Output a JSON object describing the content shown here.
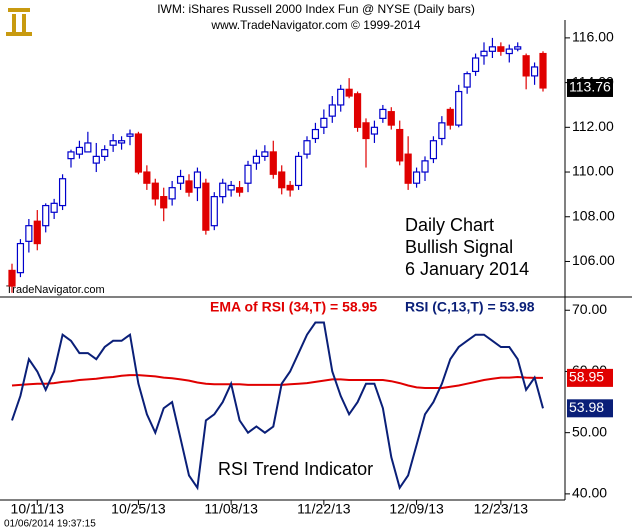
{
  "header": {
    "title": "IWM:  iShares Russell 2000 Index Fun @ NYSE  (Daily bars)",
    "subtitle": "www.TradeNavigator.com © 1999-2014"
  },
  "timestamp": "01/06/2014 19:37:15",
  "chart_data": [
    {
      "type": "candlestick",
      "watermark": "TradeNavigator.com",
      "annotation": [
        "Daily Chart",
        "Bullish Signal",
        "6 January 2014"
      ],
      "up_color": "#0000cc",
      "down_color": "#e00000",
      "ylim": [
        104.5,
        116.8
      ],
      "yticks": [
        {
          "value": 106,
          "label": "106.00"
        },
        {
          "value": 108,
          "label": "108.00"
        },
        {
          "value": 110,
          "label": "110.00"
        },
        {
          "value": 112,
          "label": "112.00"
        },
        {
          "value": 114,
          "label": "114.00"
        },
        {
          "value": 116,
          "label": "116.00"
        }
      ],
      "open": [
        105.6,
        105.5,
        106.9,
        107.8,
        107.6,
        108.2,
        108.5,
        110.6,
        110.8,
        110.9,
        110.4,
        110.7,
        111.2,
        111.3,
        111.6,
        111.7,
        110.0,
        109.5,
        108.9,
        108.8,
        109.5,
        109.6,
        109.3,
        109.5,
        107.6,
        108.9,
        109.2,
        109.3,
        109.5,
        110.4,
        110.7,
        110.9,
        110.0,
        109.4,
        109.4,
        110.8,
        111.5,
        112.0,
        112.5,
        113.0,
        113.7,
        113.5,
        112.2,
        111.7,
        112.4,
        112.7,
        111.9,
        110.8,
        109.5,
        110.0,
        110.6,
        111.5,
        112.8,
        112.1,
        113.8,
        114.5,
        115.2,
        115.4,
        115.6,
        115.3,
        115.5,
        115.2,
        114.3,
        115.3
      ],
      "high": [
        105.9,
        107.0,
        107.9,
        108.3,
        108.6,
        108.8,
        109.9,
        111.0,
        111.4,
        111.8,
        111.3,
        111.2,
        111.7,
        111.6,
        111.9,
        111.8,
        110.3,
        109.7,
        109.3,
        109.6,
        110.1,
        109.9,
        110.2,
        109.7,
        109.1,
        109.7,
        109.6,
        109.6,
        110.5,
        111.0,
        111.2,
        111.4,
        110.3,
        109.6,
        110.9,
        111.6,
        112.2,
        112.8,
        113.4,
        113.9,
        114.2,
        113.6,
        112.4,
        112.3,
        113.0,
        112.9,
        112.3,
        111.6,
        110.2,
        110.7,
        111.6,
        112.5,
        112.9,
        113.9,
        114.5,
        115.3,
        115.8,
        116.0,
        115.8,
        115.7,
        115.8,
        115.3,
        114.9,
        115.4
      ],
      "low": [
        104.6,
        105.3,
        106.4,
        106.5,
        107.3,
        107.9,
        108.3,
        110.2,
        110.6,
        110.9,
        110.0,
        110.5,
        110.9,
        111.0,
        111.2,
        109.9,
        109.2,
        108.5,
        107.8,
        108.5,
        109.2,
        108.9,
        108.7,
        107.2,
        107.4,
        108.6,
        108.9,
        108.9,
        109.1,
        110.1,
        110.5,
        109.7,
        109.0,
        108.9,
        109.2,
        110.6,
        111.3,
        111.7,
        112.2,
        112.7,
        113.3,
        111.8,
        110.2,
        111.3,
        112.2,
        111.9,
        110.3,
        109.2,
        109.3,
        109.6,
        110.4,
        111.2,
        111.9,
        112.0,
        113.5,
        114.3,
        114.8,
        115.1,
        115.2,
        114.9,
        115.4,
        113.7,
        113.9,
        113.6
      ],
      "close": [
        104.9,
        106.8,
        107.6,
        106.8,
        108.5,
        108.6,
        109.7,
        110.9,
        111.1,
        111.3,
        110.7,
        111.0,
        111.4,
        111.4,
        111.7,
        110.0,
        109.5,
        108.8,
        108.4,
        109.3,
        109.8,
        109.1,
        110.0,
        107.4,
        108.9,
        109.5,
        109.4,
        109.1,
        110.3,
        110.7,
        110.9,
        109.9,
        109.3,
        109.2,
        110.7,
        111.4,
        111.9,
        112.4,
        113.0,
        113.7,
        113.4,
        112.0,
        111.5,
        112.0,
        112.8,
        112.1,
        110.5,
        109.5,
        110.0,
        110.5,
        111.4,
        112.2,
        112.1,
        113.6,
        114.4,
        115.1,
        115.4,
        115.6,
        115.4,
        115.5,
        115.6,
        114.3,
        114.7,
        113.76
      ]
    },
    {
      "type": "line",
      "annotation": "RSI Trend Indicator",
      "categories": [
        null,
        null,
        null,
        "10/11/13",
        null,
        null,
        null,
        null,
        null,
        null,
        null,
        null,
        null,
        null,
        null,
        "10/25/13",
        null,
        null,
        null,
        null,
        null,
        null,
        null,
        null,
        null,
        null,
        "11/08/13",
        null,
        null,
        null,
        null,
        null,
        null,
        null,
        null,
        null,
        null,
        "11/22/13",
        null,
        null,
        null,
        null,
        null,
        null,
        null,
        null,
        null,
        null,
        "12/09/13",
        null,
        null,
        null,
        null,
        null,
        null,
        null,
        null,
        null,
        "12/23/13",
        null,
        null,
        null,
        null,
        null
      ],
      "ylim": [
        39,
        72
      ],
      "yticks": [
        {
          "value": 40,
          "label": "40.00"
        },
        {
          "value": 50,
          "label": "50.00"
        },
        {
          "value": 60,
          "label": "60.00"
        },
        {
          "value": 70,
          "label": "70.00"
        }
      ],
      "series": [
        {
          "name": "EMA of RSI (34,T) = 58.95",
          "color": "#e00000",
          "values": [
            57.7,
            57.8,
            57.9,
            58.0,
            58.0,
            58.1,
            58.3,
            58.4,
            58.6,
            58.7,
            58.8,
            59.0,
            59.1,
            59.3,
            59.4,
            59.4,
            59.3,
            59.2,
            59.0,
            58.9,
            58.7,
            58.5,
            58.2,
            58.0,
            57.9,
            57.9,
            57.9,
            57.9,
            57.8,
            57.8,
            57.8,
            57.8,
            57.8,
            57.9,
            58.0,
            58.1,
            58.3,
            58.5,
            58.7,
            58.7,
            58.6,
            58.6,
            58.6,
            58.6,
            58.6,
            58.4,
            58.1,
            57.7,
            57.4,
            57.3,
            57.3,
            57.3,
            57.5,
            57.7,
            58.0,
            58.3,
            58.6,
            58.8,
            59.0,
            59.0,
            59.1,
            59.0,
            58.95,
            58.95
          ]
        },
        {
          "name": "RSI (C,13,T) = 53.98",
          "color": "#0a1f78",
          "values": [
            52,
            56,
            62,
            60,
            57,
            60,
            66,
            65,
            63,
            63,
            62,
            64,
            65,
            65,
            66,
            58,
            53,
            50,
            54,
            55,
            49,
            43,
            41,
            52,
            53,
            55,
            58,
            52,
            50,
            51,
            50,
            51,
            58,
            60,
            63,
            66,
            68,
            68,
            60,
            56,
            53,
            55,
            58,
            58,
            54,
            46,
            41,
            43,
            48,
            53,
            55,
            58,
            62,
            64,
            65,
            66,
            66,
            65,
            64,
            64,
            62,
            57,
            59,
            53.98
          ]
        }
      ]
    }
  ]
}
